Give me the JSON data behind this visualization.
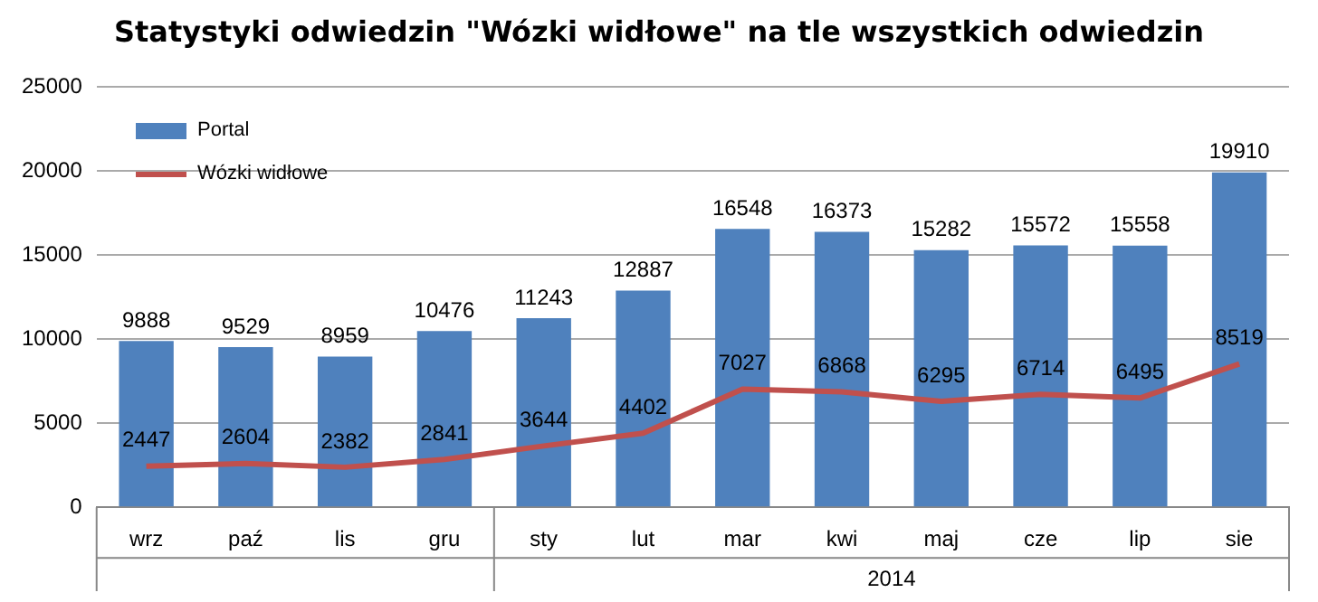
{
  "chart_data": {
    "type": "bar",
    "title": "Statystyki odwiedzin \"Wózki widłowe\" na tle wszystkich odwiedzin",
    "categories": [
      "wrz",
      "paź",
      "lis",
      "gru",
      "sty",
      "lut",
      "mar",
      "kwi",
      "maj",
      "cze",
      "lip",
      "sie"
    ],
    "series": [
      {
        "name": "Portal",
        "color": "#4f81bd",
        "values": [
          9888,
          9529,
          8959,
          10476,
          11243,
          12887,
          16548,
          16373,
          15282,
          15572,
          15558,
          19910
        ]
      },
      {
        "name": "Wózki widłowe",
        "type": "line",
        "color": "#c0504d",
        "values": [
          2447,
          2604,
          2382,
          2841,
          3644,
          4402,
          7027,
          6868,
          6295,
          6714,
          6495,
          8519
        ]
      }
    ],
    "ylim": [
      0,
      25000
    ],
    "yticks": [
      0,
      5000,
      10000,
      15000,
      20000,
      25000
    ],
    "grid": "y",
    "legend": "top left",
    "data_labels": true,
    "marker": "none",
    "annotations": [
      "2014"
    ]
  }
}
